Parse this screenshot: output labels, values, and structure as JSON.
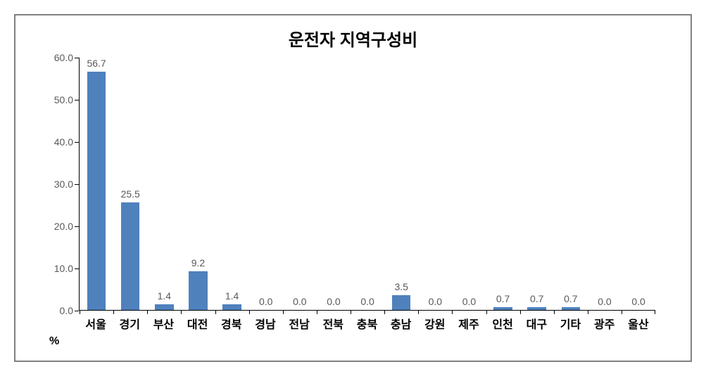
{
  "chart": {
    "type": "bar",
    "title": "운전자 지역구성비",
    "title_fontsize": 24,
    "unit_label": "%",
    "categories": [
      "서울",
      "경기",
      "부산",
      "대전",
      "경북",
      "경남",
      "전남",
      "전북",
      "충북",
      "충남",
      "강원",
      "제주",
      "인천",
      "대구",
      "기타",
      "광주",
      "울산"
    ],
    "values": [
      56.7,
      25.5,
      1.4,
      9.2,
      1.4,
      0.0,
      0.0,
      0.0,
      0.0,
      3.5,
      0.0,
      0.0,
      0.7,
      0.7,
      0.7,
      0.0,
      0.0
    ],
    "value_labels": [
      "56.7",
      "25.5",
      "1.4",
      "9.2",
      "1.4",
      "0.0",
      "0.0",
      "0.0",
      "0.0",
      "3.5",
      "0.0",
      "0.0",
      "0.7",
      "0.7",
      "0.7",
      "0.0",
      "0.0"
    ],
    "bar_color": "#4f81bd",
    "ylim": [
      0,
      60
    ],
    "ytick_step": 10,
    "yticks": [
      "0.0",
      "10.0",
      "20.0",
      "30.0",
      "40.0",
      "50.0",
      "60.0"
    ],
    "axis_color": "#000000",
    "tick_label_color": "#595959",
    "x_label_color": "#000000",
    "background_color": "#ffffff",
    "border_color": "#808080",
    "label_fontsize": 14,
    "x_label_fontsize": 16,
    "tick_fontsize": 14,
    "bar_width": 0.55
  }
}
